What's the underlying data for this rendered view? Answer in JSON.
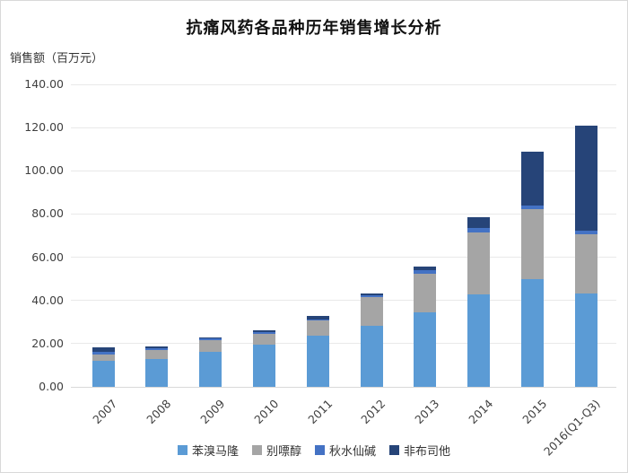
{
  "chart_data": {
    "type": "bar",
    "stacked": true,
    "title": "抗痛风药各品种历年销售增长分析",
    "ylabel": "销售额（百万元）",
    "xlabel": "",
    "ylim": [
      0,
      140
    ],
    "ytick_step": 20,
    "ytick_format_decimals": 2,
    "grid": true,
    "legend_position": "bottom",
    "categories": [
      "2007",
      "2008",
      "2009",
      "2010",
      "2011",
      "2012",
      "2013",
      "2014",
      "2015",
      "2016(Q1-Q3)"
    ],
    "series": [
      {
        "name": "苯溴马隆",
        "color": "#5B9BD5",
        "values": [
          12.0,
          12.8,
          16.2,
          19.7,
          23.6,
          28.4,
          34.4,
          43.0,
          50.0,
          43.2
        ]
      },
      {
        "name": "别嘌醇",
        "color": "#A5A5A5",
        "values": [
          3.0,
          4.4,
          5.5,
          5.0,
          7.2,
          13.1,
          18.0,
          28.4,
          32.4,
          27.4
        ]
      },
      {
        "name": "秋水仙碱",
        "color": "#4472C4",
        "values": [
          1.2,
          0.8,
          0.6,
          0.7,
          0.5,
          1.0,
          1.7,
          2.1,
          1.4,
          1.7
        ]
      },
      {
        "name": "非布司他",
        "color": "#264478",
        "values": [
          2.0,
          0.9,
          0.6,
          0.8,
          1.4,
          0.7,
          1.4,
          4.9,
          24.9,
          48.5
        ]
      }
    ],
    "colors": {
      "gridline": "#E9E9E9",
      "axis_line": "#D9D9D9",
      "tick_text": "#404040",
      "title_text": "#111111"
    }
  }
}
